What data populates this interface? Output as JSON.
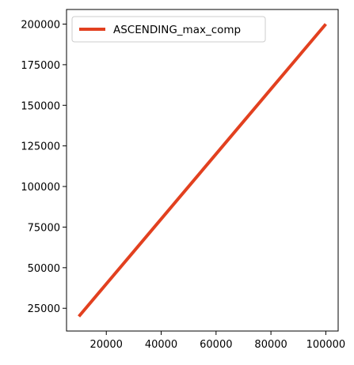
{
  "chart_data": {
    "type": "line",
    "title": "",
    "xlabel": "",
    "ylabel": "",
    "xlim": [
      5500,
      104500
    ],
    "ylim": [
      11000,
      209000
    ],
    "x_ticks": [
      20000,
      40000,
      60000,
      80000,
      100000
    ],
    "y_ticks": [
      25000,
      50000,
      75000,
      100000,
      125000,
      150000,
      175000,
      200000
    ],
    "grid": false,
    "legend_position": "top-left",
    "series": [
      {
        "name": "ASCENDING_max_comp",
        "color": "#e2401f",
        "x": [
          10000,
          20000,
          30000,
          40000,
          50000,
          60000,
          70000,
          80000,
          90000,
          100000
        ],
        "y": [
          20000,
          40000,
          60000,
          80000,
          100000,
          120000,
          140000,
          160000,
          180000,
          200000
        ]
      }
    ]
  }
}
